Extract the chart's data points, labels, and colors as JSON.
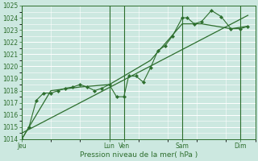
{
  "xlabel": "Pression niveau de la mer( hPa )",
  "bg_color": "#cce8e0",
  "grid_color": "#ffffff",
  "line_color": "#2d6e2d",
  "ylim": [
    1014,
    1025
  ],
  "xlim": [
    0,
    96
  ],
  "yticks": [
    1014,
    1015,
    1016,
    1017,
    1018,
    1019,
    1020,
    1021,
    1022,
    1023,
    1024,
    1025
  ],
  "day_positions": [
    0,
    36,
    42,
    66,
    90
  ],
  "day_labels": [
    "Jeu",
    "Lun",
    "Ven",
    "Sam",
    "Dim"
  ],
  "series1_x": [
    0,
    3,
    6,
    9,
    12,
    15,
    18,
    21,
    24,
    27,
    30,
    33,
    36,
    39,
    42,
    44,
    47,
    50,
    53,
    56,
    59,
    62,
    66,
    68,
    71,
    74,
    78,
    82,
    86,
    90,
    93
  ],
  "series1_y": [
    1014.0,
    1015.0,
    1017.2,
    1017.8,
    1017.8,
    1018.0,
    1018.2,
    1018.3,
    1018.5,
    1018.3,
    1018.0,
    1018.2,
    1018.5,
    1017.5,
    1017.5,
    1019.2,
    1019.2,
    1018.7,
    1019.9,
    1021.3,
    1021.7,
    1022.5,
    1024.0,
    1024.0,
    1023.5,
    1023.7,
    1024.6,
    1024.1,
    1023.1,
    1023.1,
    1023.3
  ],
  "series2_x": [
    0,
    12,
    24,
    36,
    42,
    53,
    66,
    74,
    86,
    93
  ],
  "series2_y": [
    1014.0,
    1018.0,
    1018.3,
    1018.5,
    1019.2,
    1020.5,
    1023.5,
    1023.5,
    1023.1,
    1023.3
  ],
  "trend_x": [
    0,
    93
  ],
  "trend_y": [
    1014.5,
    1024.2
  ]
}
